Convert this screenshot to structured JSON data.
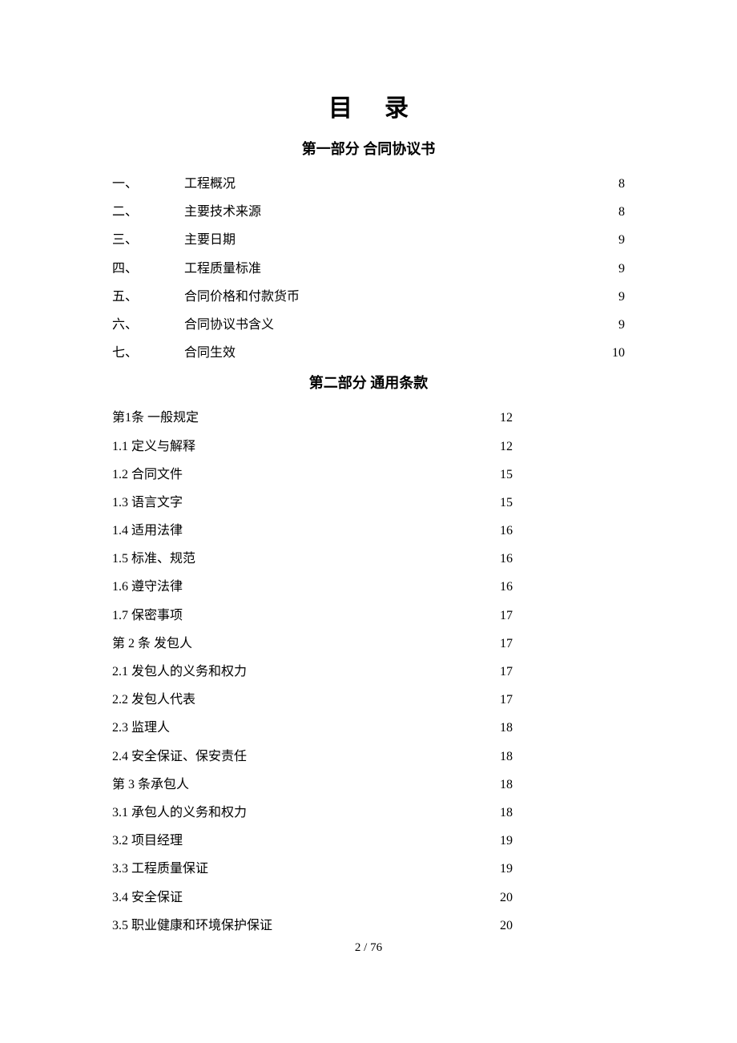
{
  "title": "目录",
  "section1_header": "第一部分  合同协议书",
  "section2_header": "第二部分  通用条款",
  "footer": "2  / 76",
  "section1_items": [
    {
      "num": "一、",
      "label": "工程概况",
      "page": "8"
    },
    {
      "num": "二、",
      "label": "主要技术来源",
      "page": "8"
    },
    {
      "num": "三、",
      "label": "主要日期",
      "page": "9"
    },
    {
      "num": "四、",
      "label": "工程质量标准",
      "page": "9"
    },
    {
      "num": "五、",
      "label": "合同价格和付款货币",
      "page": "9"
    },
    {
      "num": "六、",
      "label": "合同协议书含义",
      "page": "9"
    },
    {
      "num": "七、",
      "label": "合同生效",
      "page": "10"
    }
  ],
  "section2_items": [
    {
      "label": "第1条   一般规定",
      "page": "12"
    },
    {
      "label": "1.1 定义与解释",
      "page": "12"
    },
    {
      "label": "1.2 合同文件",
      "page": "15"
    },
    {
      "label": "1.3 语言文字",
      "page": "15"
    },
    {
      "label": "1.4 适用法律",
      "page": "16"
    },
    {
      "label": "1.5 标准、规范",
      "page": "16"
    },
    {
      "label": "1.6 遵守法律",
      "page": "16"
    },
    {
      "label": "1.7 保密事项",
      "page": "17"
    },
    {
      "label": "第 2 条  发包人 ",
      "page": "17"
    },
    {
      "label": "2.1 发包人的义务和权力",
      "page": "17"
    },
    {
      "label": "2.2 发包人代表",
      "page": "17"
    },
    {
      "label": "2.3 监理人",
      "page": "18"
    },
    {
      "label": "2.4 安全保证、保安责任",
      "page": "18"
    },
    {
      "label": "第 3 条承包人",
      "page": "18"
    },
    {
      "label": "3.1 承包人的义务和权力",
      "page": "18"
    },
    {
      "label": "3.2 项目经理",
      "page": "19"
    },
    {
      "label": "3.3 工程质量保证",
      "page": "19"
    },
    {
      "label": "3.4 安全保证",
      "page": "20"
    },
    {
      "label": "3.5 职业健康和环境保护保证",
      "page": "20"
    }
  ]
}
